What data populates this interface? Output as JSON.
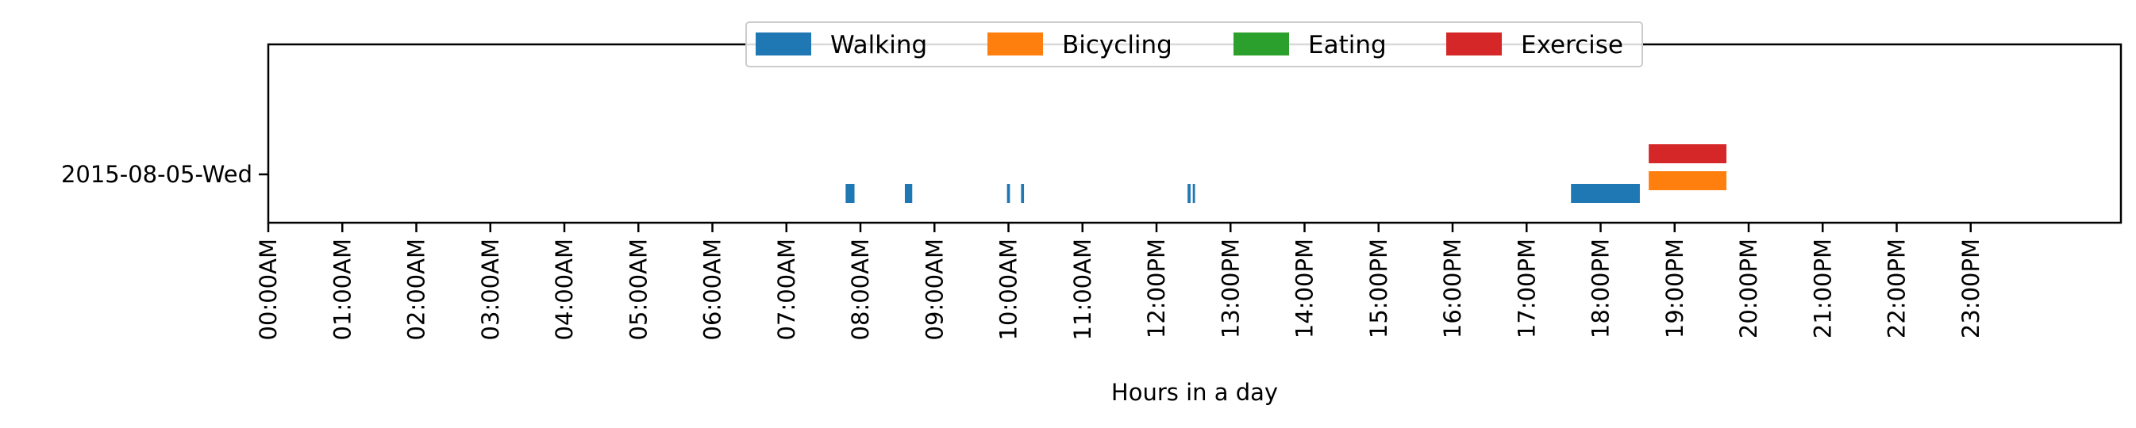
{
  "chart_data": {
    "type": "broken-bar-timeline",
    "title": "",
    "xlabel": "Hours in a day",
    "ylabel": "",
    "x_unit": "hours",
    "xlim": [
      0,
      24
    ],
    "x_tick_labels": [
      "00:00AM",
      "01:00AM",
      "02:00AM",
      "03:00AM",
      "04:00AM",
      "05:00AM",
      "06:00AM",
      "07:00AM",
      "08:00AM",
      "09:00AM",
      "10:00AM",
      "11:00AM",
      "12:00PM",
      "13:00PM",
      "14:00PM",
      "15:00PM",
      "16:00PM",
      "17:00PM",
      "18:00PM",
      "19:00PM",
      "20:00PM",
      "21:00PM",
      "22:00PM",
      "23:00PM"
    ],
    "y_categories": [
      "2015-08-05-Wed"
    ],
    "grid": false,
    "legend_placement": "top-center",
    "series": [
      {
        "name": "Walking",
        "color": "#1f77b4",
        "intervals": [
          [
            7.8,
            7.92
          ],
          [
            8.6,
            8.7
          ],
          [
            9.98,
            10.02
          ],
          [
            10.17,
            10.21
          ],
          [
            12.42,
            12.46
          ],
          [
            12.49,
            12.52
          ],
          [
            17.6,
            18.53
          ]
        ]
      },
      {
        "name": "Bicycling",
        "color": "#ff7f0e",
        "intervals": [
          [
            18.65,
            19.7
          ]
        ]
      },
      {
        "name": "Eating",
        "color": "#2ca02c",
        "intervals": []
      },
      {
        "name": "Exercise",
        "color": "#d62728",
        "intervals": [
          [
            18.65,
            19.7
          ]
        ]
      }
    ]
  }
}
